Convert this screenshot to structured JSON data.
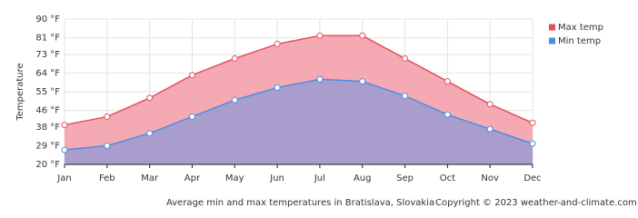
{
  "chart_data": {
    "type": "area",
    "y_label": "Temperature",
    "caption": "Average min and max temperatures in Bratislava, Slovakia",
    "copyright": "Copyright © 2023  weather-and-climate.com",
    "categories": [
      "Jan",
      "Feb",
      "Mar",
      "Apr",
      "May",
      "Jun",
      "Jul",
      "Aug",
      "Sep",
      "Oct",
      "Nov",
      "Dec"
    ],
    "series": [
      {
        "name": "Max temp",
        "color": "#e4505c",
        "fill": "#f5aab3",
        "values": [
          39,
          43,
          52,
          63,
          71,
          78,
          82,
          82,
          71,
          60,
          49,
          40
        ]
      },
      {
        "name": "Min temp",
        "color": "#4b8ee0",
        "fill": "#a99dcd",
        "values": [
          27,
          29,
          35,
          43,
          51,
          57,
          61,
          60,
          53,
          44,
          37,
          30
        ]
      }
    ],
    "ylim": [
      20,
      90
    ],
    "yticks": [
      {
        "value": 20,
        "label": "20 °F"
      },
      {
        "value": 29,
        "label": "29 °F"
      },
      {
        "value": 38,
        "label": "38 °F"
      },
      {
        "value": 46,
        "label": "46 °F"
      },
      {
        "value": 55,
        "label": "55 °F"
      },
      {
        "value": 64,
        "label": "64 °F"
      },
      {
        "value": 73,
        "label": "73 °F"
      },
      {
        "value": 81,
        "label": "81 °F"
      },
      {
        "value": 90,
        "label": "90 °F"
      }
    ],
    "grid": true,
    "legend": "top-right"
  }
}
